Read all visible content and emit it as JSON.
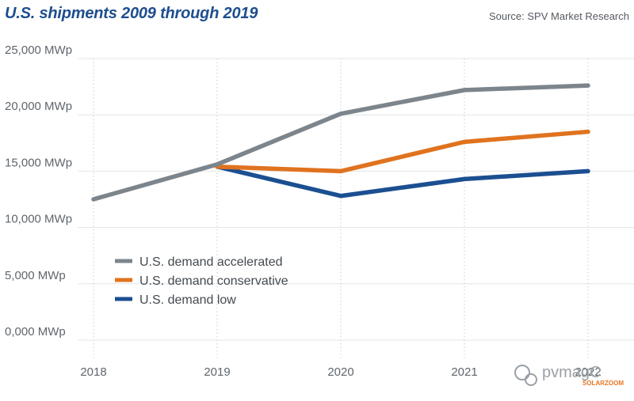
{
  "chart_data": {
    "type": "line",
    "title": "U.S. shipments 2009 through 2019",
    "source": "Source: SPV Market Research",
    "categories": [
      "2018",
      "2019",
      "2020",
      "2021",
      "2022"
    ],
    "ylim": [
      0,
      25000
    ],
    "yticks": [
      0,
      5000,
      10000,
      15000,
      20000,
      25000
    ],
    "ytick_labels": [
      "0,000 MWp",
      "5,000 MWp",
      "10,000 MWp",
      "15,000 MWp",
      "20,000 MWp",
      "25,000 MWp"
    ],
    "grid": true,
    "legend_position": "center-left",
    "series": [
      {
        "name": "U.S. demand accelerated",
        "color": "#7d858c",
        "values": [
          12500,
          15600,
          20100,
          22200,
          22600
        ]
      },
      {
        "name": "U.S. demand conservative",
        "color": "#e0731f",
        "values": [
          null,
          15400,
          15000,
          17600,
          18500
        ]
      },
      {
        "name": "U.S. demand low",
        "color": "#1b4f91",
        "values": [
          null,
          15400,
          12800,
          14300,
          15000
        ]
      }
    ]
  },
  "watermark": {
    "text": "pvmagC",
    "brand": "SOLARZOOM"
  }
}
